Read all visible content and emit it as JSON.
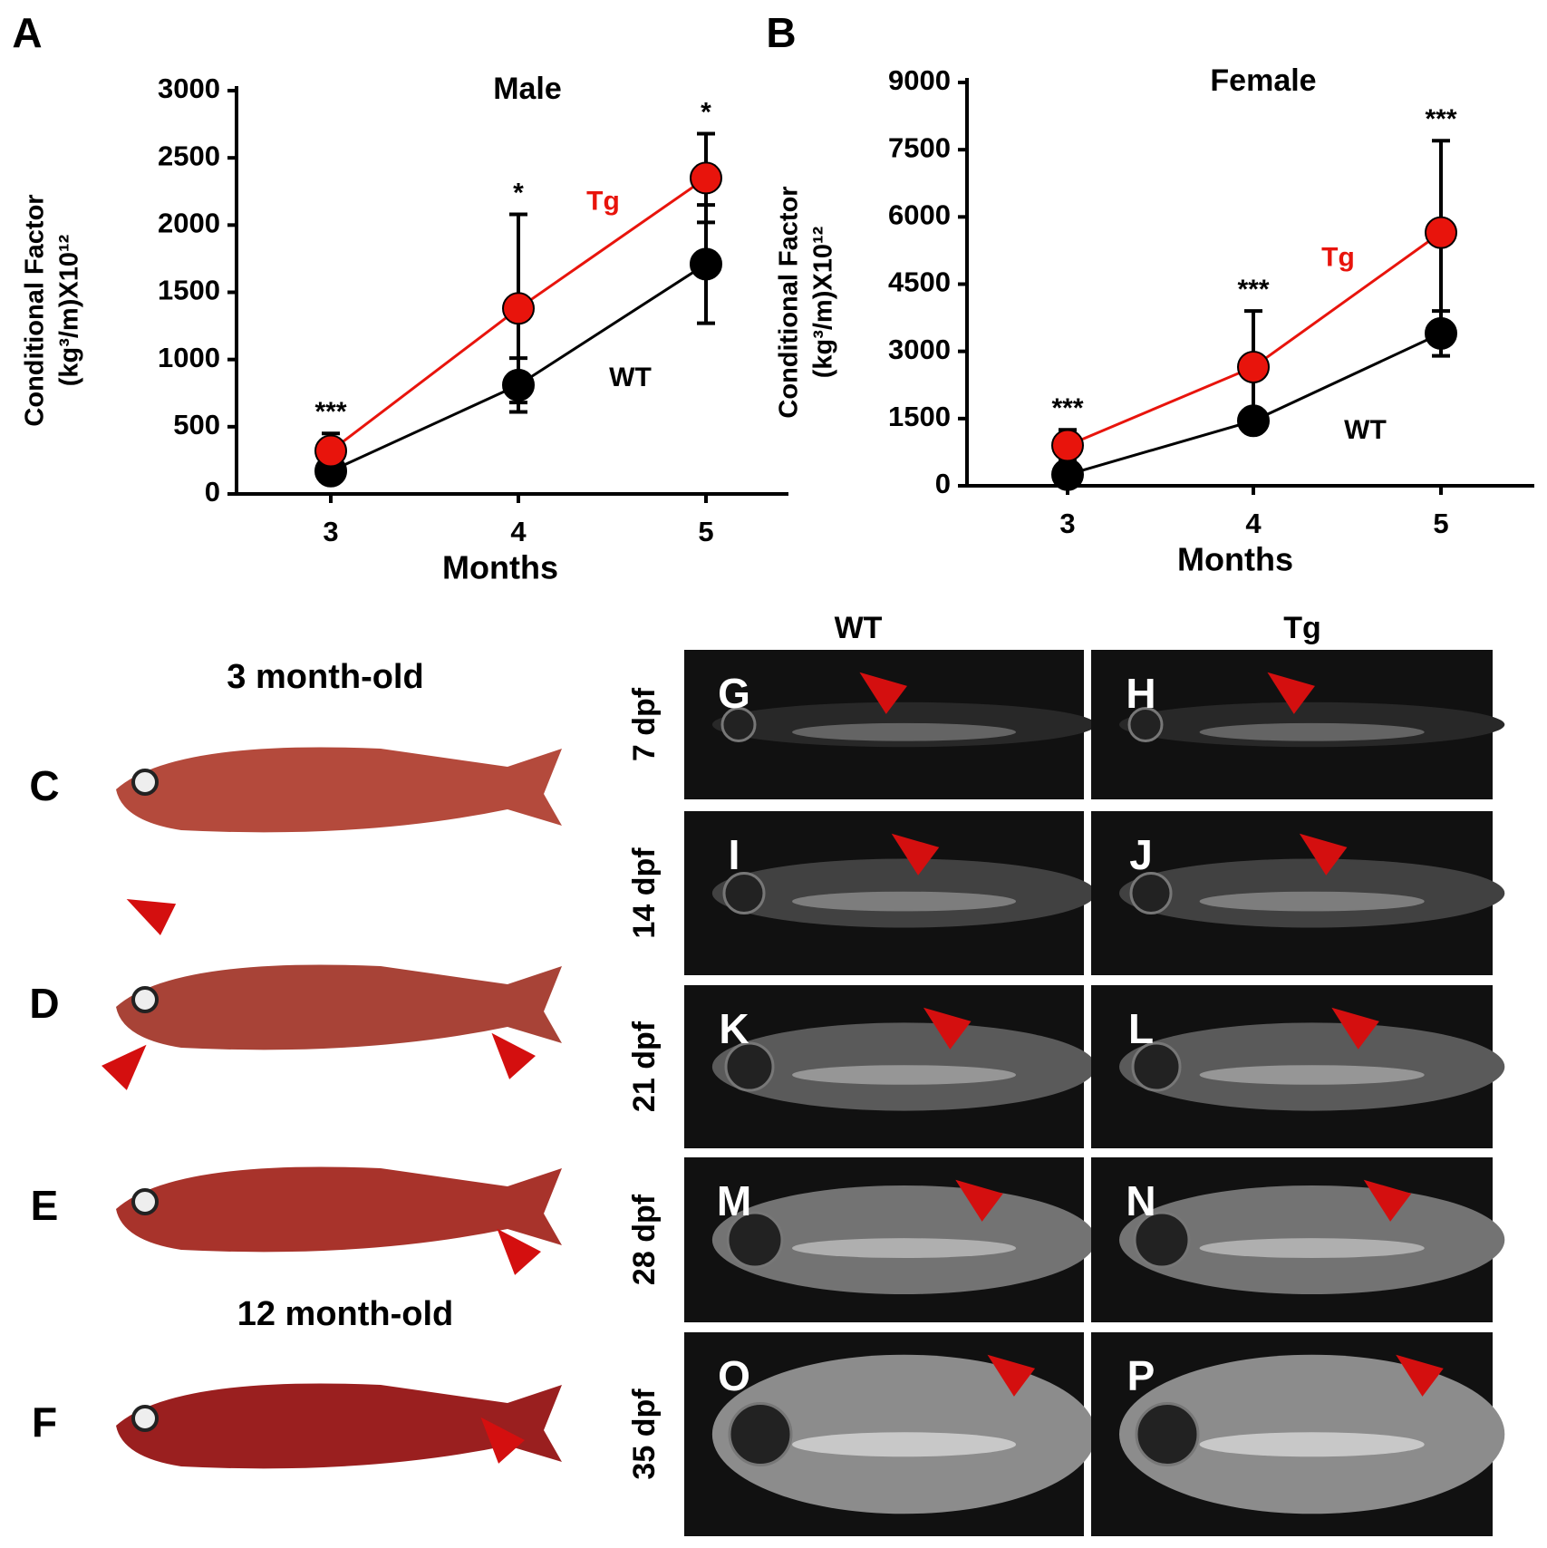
{
  "chart_data": [
    {
      "type": "line",
      "panel": "A",
      "title": "Male",
      "xlabel": "Months",
      "ylabel": [
        "Conditional Factor",
        "(kg³/m)X10¹²"
      ],
      "categories": [
        "3",
        "4",
        "5"
      ],
      "ylim": [
        0,
        3000
      ],
      "yticks": [
        0,
        500,
        1000,
        1500,
        2000,
        2500,
        3000
      ],
      "annotations": [
        "***",
        "*",
        "*"
      ],
      "series": [
        {
          "name": "WT",
          "color": "#000000",
          "values": [
            170,
            810,
            1710
          ],
          "errors": [
            60,
            200,
            440
          ]
        },
        {
          "name": "Tg",
          "color": "#e8140c",
          "values": [
            320,
            1380,
            2350
          ],
          "errors": [
            130,
            700,
            330
          ]
        }
      ]
    },
    {
      "type": "line",
      "panel": "B",
      "title": "Female",
      "xlabel": "Months",
      "ylabel": [
        "Conditional Factor",
        "(kg³/m)X10¹²"
      ],
      "categories": [
        "3",
        "4",
        "5"
      ],
      "ylim": [
        0,
        9000
      ],
      "yticks": [
        0,
        1500,
        3000,
        4500,
        6000,
        7500,
        9000
      ],
      "annotations": [
        "***",
        "***",
        "***"
      ],
      "series": [
        {
          "name": "WT",
          "color": "#000000",
          "values": [
            250,
            1450,
            3400
          ],
          "errors": [
            100,
            150,
            500
          ]
        },
        {
          "name": "Tg",
          "color": "#e8140c",
          "values": [
            900,
            2650,
            5650
          ],
          "errors": [
            350,
            1250,
            2050
          ]
        }
      ]
    }
  ],
  "photos": {
    "headings": [
      "3 month-old",
      "12 month-old"
    ],
    "left_labels": [
      "C",
      "D",
      "E",
      "F"
    ],
    "columns": [
      "WT",
      "Tg"
    ],
    "rows": [
      "7 dpf",
      "14 dpf",
      "21 dpf",
      "28 dpf",
      "35 dpf"
    ],
    "panels": [
      [
        "G",
        "H"
      ],
      [
        "I",
        "J"
      ],
      [
        "K",
        "L"
      ],
      [
        "M",
        "N"
      ],
      [
        "O",
        "P"
      ]
    ]
  }
}
